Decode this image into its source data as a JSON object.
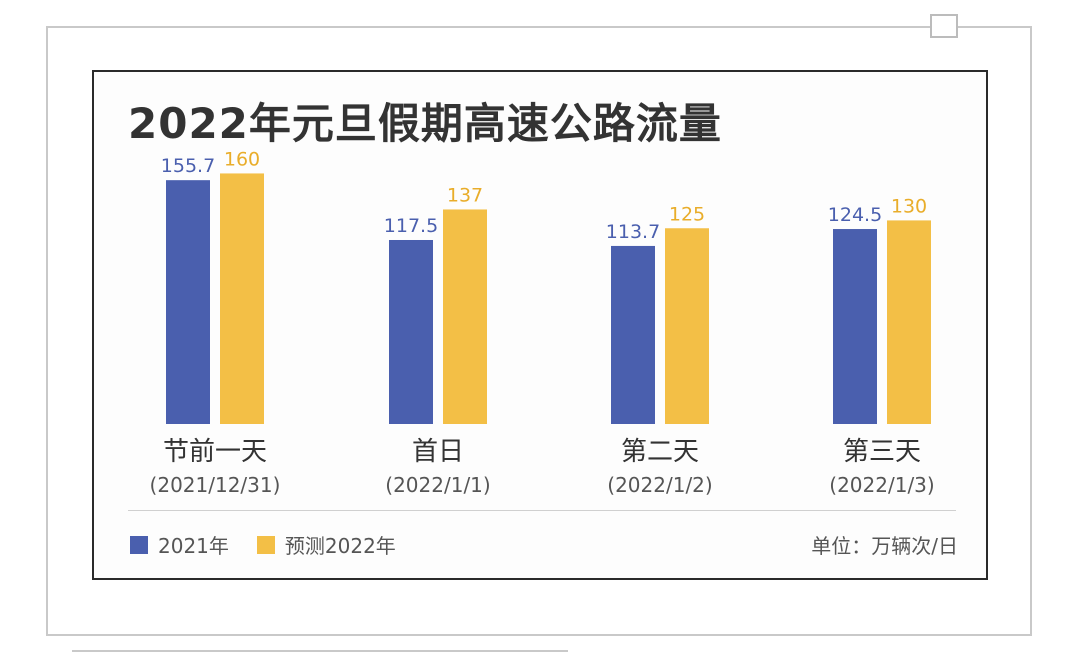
{
  "chart_data": {
    "type": "bar",
    "title": "2022年元旦假期高速公路流量",
    "categories": [
      {
        "name": "节前一天",
        "date": "(2021/12/31)"
      },
      {
        "name": "首日",
        "date": "(2022/1/1)"
      },
      {
        "name": "第二天",
        "date": "(2022/1/2)"
      },
      {
        "name": "第三天",
        "date": "(2022/1/3)"
      }
    ],
    "series": [
      {
        "name": "2021年",
        "color": "#4a5fae",
        "values": [
          155.7,
          117.5,
          113.7,
          124.5
        ]
      },
      {
        "name": "预测2022年",
        "color": "#f3bf46",
        "values": [
          160,
          137,
          125,
          130
        ]
      }
    ],
    "unit_label": "单位：万辆次/日",
    "ylim": [
      0,
      160
    ]
  }
}
